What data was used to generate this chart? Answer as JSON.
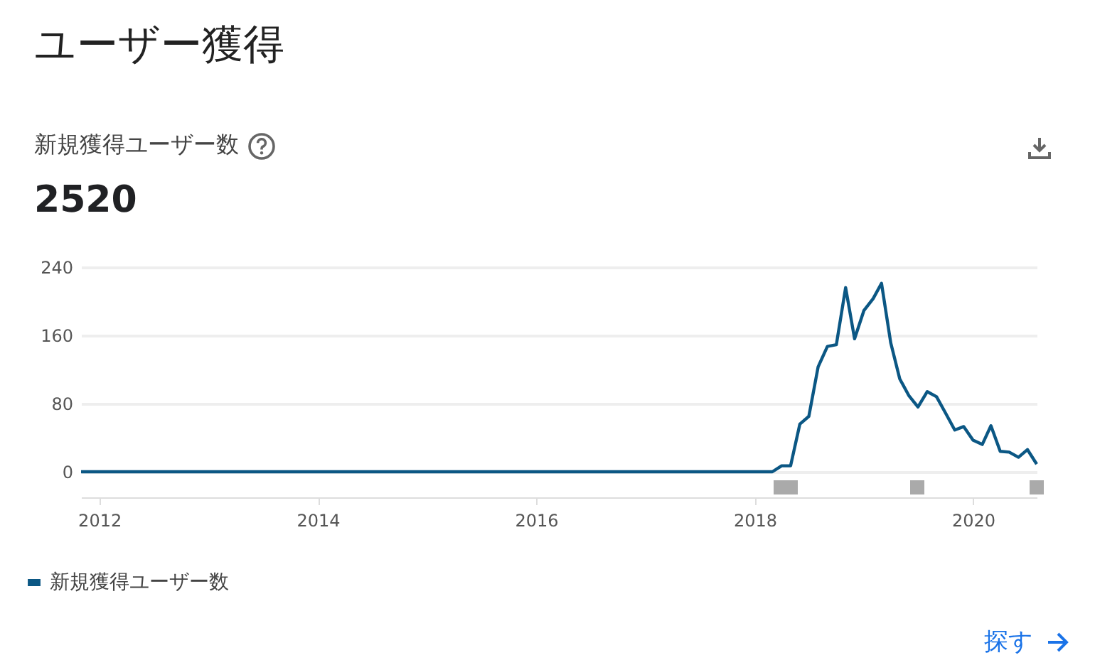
{
  "chart_data": {
    "type": "line",
    "title": "ユーザー獲得",
    "subtitle": "新規獲得ユーザー数",
    "annotations": [
      "2520",
      "探す"
    ],
    "x": [
      "2011-11",
      "2018-03",
      "2018-04",
      "2018-05",
      "2018-06",
      "2018-07",
      "2018-08",
      "2018-09",
      "2018-10",
      "2018-11",
      "2018-12",
      "2019-01",
      "2019-02",
      "2019-03",
      "2019-04",
      "2019-05",
      "2019-06",
      "2019-07",
      "2019-08",
      "2019-09",
      "2019-10",
      "2019-11",
      "2019-12",
      "2020-01",
      "2020-02",
      "2020-03",
      "2020-04",
      "2020-05",
      "2020-06",
      "2020-07",
      "2020-08"
    ],
    "series": [
      {
        "name": "新規獲得ユーザー数",
        "color": "#0b5784",
        "values": [
          0,
          0,
          7,
          7,
          56,
          65,
          123,
          147,
          149,
          216,
          156,
          189,
          203,
          221,
          151,
          109,
          89,
          76,
          94,
          88,
          69,
          49,
          53,
          37,
          32,
          54,
          24,
          23,
          17,
          26,
          9
        ]
      }
    ],
    "xlim": [
      "2011-11",
      "2020-08"
    ],
    "xticks": [
      {
        "value": "2012",
        "label": "2012"
      },
      {
        "value": "2014",
        "label": "2014"
      },
      {
        "value": "2016",
        "label": "2016"
      },
      {
        "value": "2018",
        "label": "2018"
      },
      {
        "value": "2020",
        "label": "2020"
      }
    ],
    "ylim": [
      -30,
      240
    ],
    "yticks": [
      0,
      80,
      160,
      240
    ],
    "grid": "y",
    "legend": "bottom",
    "marker": "none",
    "line_style": "solid"
  }
}
